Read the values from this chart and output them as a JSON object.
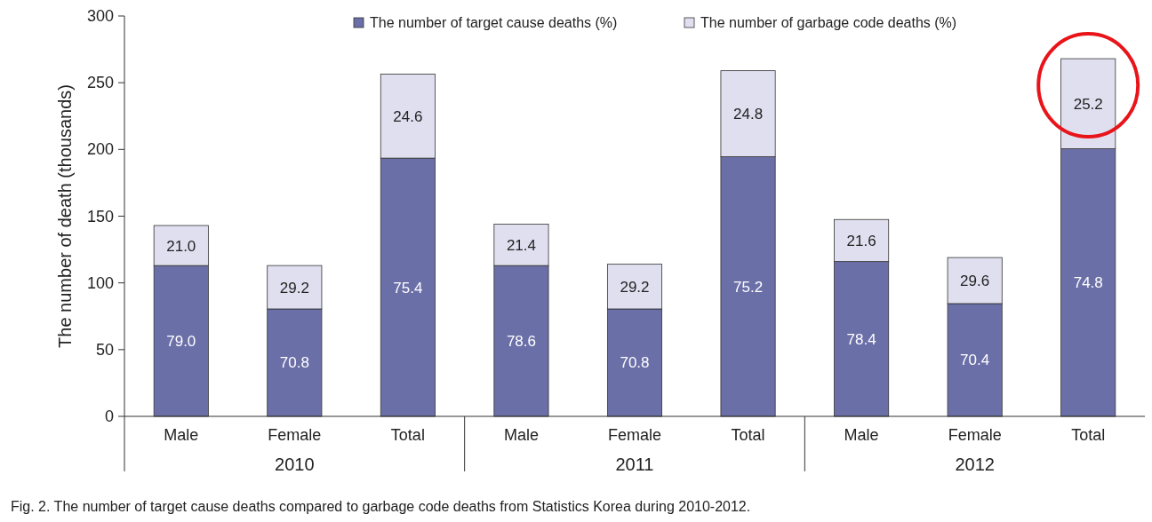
{
  "chart_data": {
    "type": "bar",
    "stacked": true,
    "ylabel": "The number of death (thousands)",
    "categories": [
      "Male",
      "Female",
      "Total",
      "Male",
      "Female",
      "Total",
      "Male",
      "Female",
      "Total"
    ],
    "series": [
      {
        "name": "The number of target cause deaths (%)",
        "color": "#6b6fa8",
        "values": [
          113,
          80.5,
          193.5,
          113,
          80.5,
          194.5,
          116,
          84.5,
          200.5
        ]
      },
      {
        "name": "The number of garbage code deaths (%)",
        "color": "#e0dff0",
        "values": [
          30,
          32.5,
          63,
          31,
          33.5,
          64.5,
          31.5,
          34.5,
          67.5
        ]
      }
    ],
    "ylim": [
      0,
      300
    ],
    "yticks": [
      0,
      50,
      100,
      150,
      200,
      250,
      300
    ],
    "legend": "top",
    "annotations": [
      "2010",
      "2011",
      "2012",
      "79.0",
      "70.8",
      "75.4",
      "78.6",
      "70.8",
      "75.2",
      "78.4",
      "70.4",
      "74.8",
      "21.0",
      "29.2",
      "24.6",
      "21.4",
      "29.2",
      "24.8",
      "21.6",
      "29.6",
      "25.2",
      "Fig. 2. The number of target cause deaths compared to garbage code deaths from Statistics Korea during 2010-2012."
    ]
  }
}
